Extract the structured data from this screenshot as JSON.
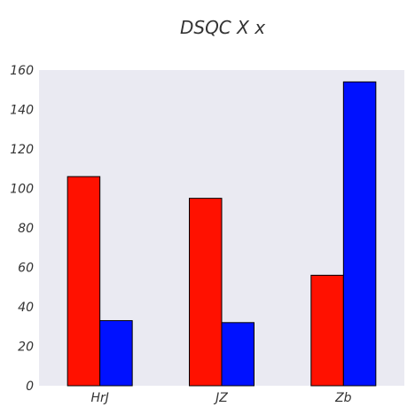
{
  "chart_data": {
    "type": "bar",
    "title": "DSQC X  x",
    "categories": [
      "HrJ",
      "JZ",
      "Zb"
    ],
    "series": [
      {
        "values": [
          106,
          95,
          56
        ],
        "color": "#ff1100"
      },
      {
        "values": [
          33,
          32,
          154
        ],
        "color": "#0011ff"
      }
    ],
    "ylim": [
      0,
      160
    ],
    "yticks": [
      0,
      20,
      40,
      60,
      80,
      100,
      120,
      140,
      160
    ],
    "grid": false,
    "plot_background": "#eaeaf2",
    "bar_edge_color": "#000000"
  }
}
